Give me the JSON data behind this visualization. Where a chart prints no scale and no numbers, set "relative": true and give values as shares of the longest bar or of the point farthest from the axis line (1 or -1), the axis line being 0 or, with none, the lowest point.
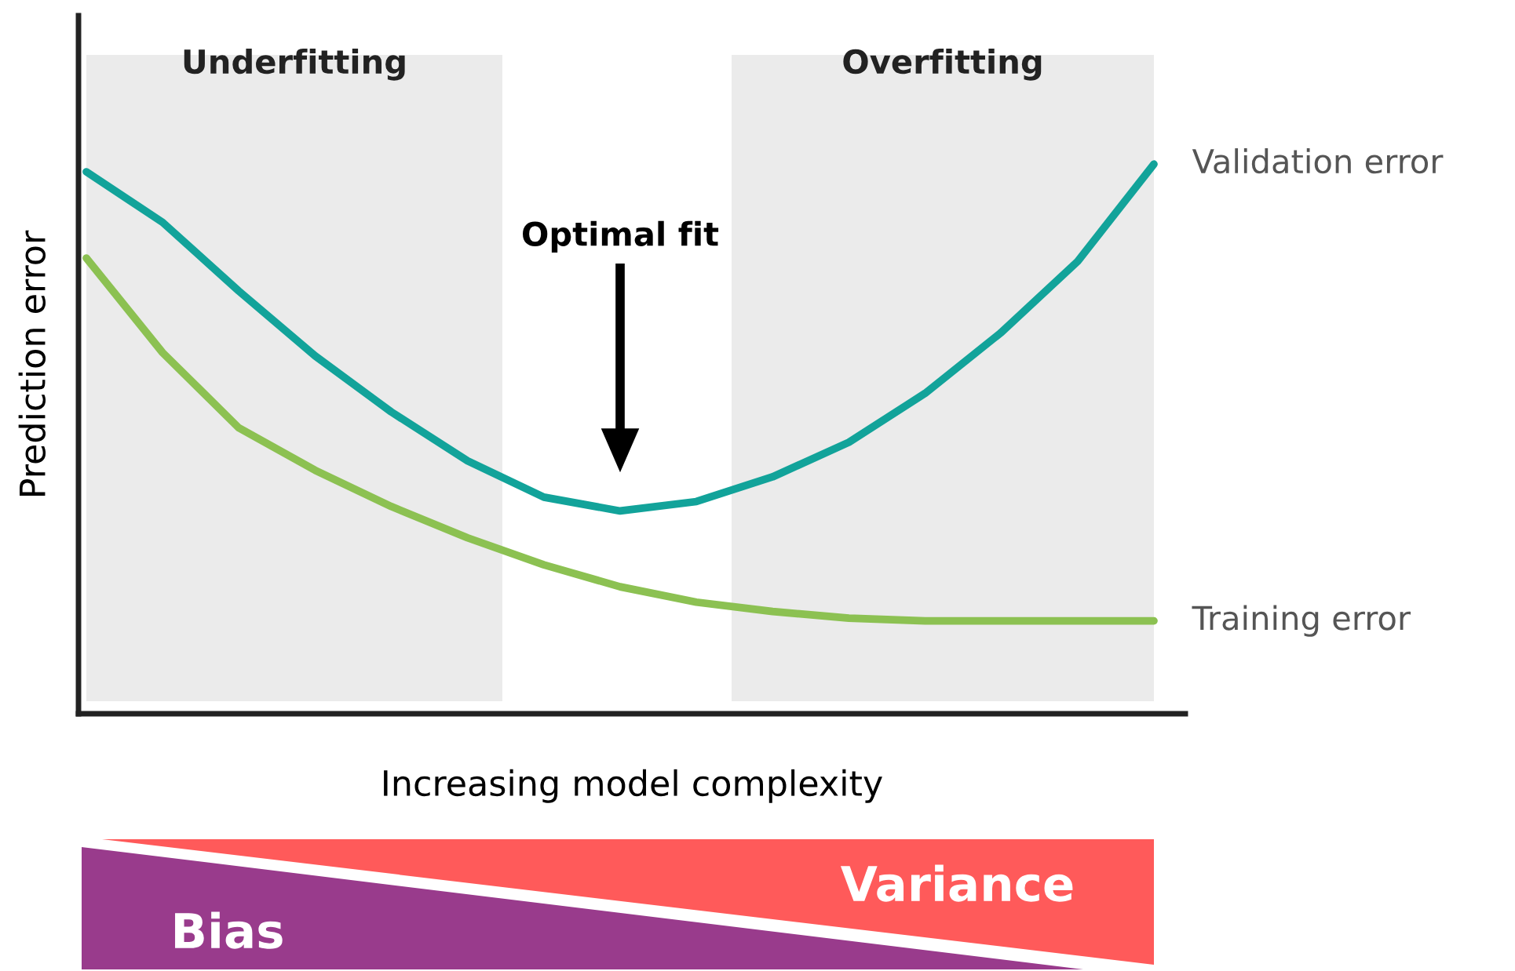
{
  "chart_data": {
    "type": "line",
    "relative": true,
    "xlabel": "Increasing model complexity",
    "ylabel": "Prediction error",
    "categories": [
      null,
      null,
      null,
      null,
      null,
      null,
      null,
      null,
      null,
      null,
      null,
      null,
      null,
      null,
      null
    ],
    "series": [
      {
        "name": "Validation error",
        "color": "#12a39a",
        "values": [
          0.986,
          0.894,
          0.769,
          0.651,
          0.549,
          0.46,
          0.394,
          0.369,
          0.386,
          0.431,
          0.494,
          0.583,
          0.694,
          0.823,
          1
        ]
      },
      {
        "name": "Training error",
        "color": "#8cc152",
        "values": [
          0.829,
          0.657,
          0.52,
          0.443,
          0.377,
          0.32,
          0.271,
          0.231,
          0.203,
          0.186,
          0.174,
          0.169,
          0.169,
          0.169,
          0.169
        ]
      }
    ],
    "annotations": [
      "Underfitting",
      "Overfitting",
      "Optimal fit",
      "Bias",
      "Variance"
    ]
  }
}
